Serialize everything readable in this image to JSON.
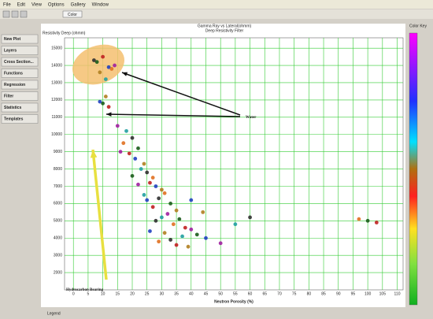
{
  "menu": [
    "File",
    "Edit",
    "View",
    "Options",
    "Gallery",
    "Window"
  ],
  "toolbar": [
    "Color"
  ],
  "side_buttons": [
    "New Plot",
    "Layers",
    "Cross Section...",
    "Functions",
    "Regression",
    "Filter",
    "Statistics",
    "Templates"
  ],
  "chart_data": {
    "type": "scatter",
    "title": "Gamma Ray vs Lateral(ohmm)",
    "subtitle": "Deep Resistivity Filter",
    "x_label": "Neutron Porosity (%)",
    "y_label": "Resistivity Deep (ohmm)",
    "colorbar_title": "Color Key",
    "legend_title": "Legend",
    "annotations": [
      "Water",
      "Hydrocarbon Bearing"
    ],
    "x": [
      8,
      10,
      12,
      9,
      14,
      11,
      7,
      13,
      10,
      12,
      9,
      11,
      15,
      18,
      20,
      17,
      22,
      19,
      21,
      24,
      16,
      23,
      25,
      27,
      20,
      26,
      28,
      30,
      22,
      24,
      29,
      31,
      33,
      27,
      25,
      35,
      32,
      30,
      28,
      34,
      36,
      38,
      26,
      31,
      40,
      37,
      33,
      29,
      42,
      35,
      45,
      39,
      50,
      55,
      60,
      97,
      100,
      103,
      40,
      44
    ],
    "y": [
      14200,
      14500,
      13900,
      13600,
      14000,
      13200,
      14300,
      13800,
      11800,
      11600,
      11900,
      12200,
      10500,
      10200,
      9800,
      9500,
      9200,
      8900,
      8600,
      8300,
      9000,
      8000,
      7800,
      7500,
      7600,
      7200,
      7000,
      6800,
      7100,
      6500,
      6300,
      6600,
      6000,
      5800,
      6200,
      5600,
      5400,
      5200,
      5000,
      4800,
      5100,
      4600,
      4400,
      4300,
      4500,
      4100,
      3900,
      3800,
      4200,
      3600,
      4000,
      3500,
      3700,
      4800,
      5200,
      5100,
      5000,
      4900,
      6200,
      5500
    ],
    "palette": [
      "#1a5c1a",
      "#c02020",
      "#2040c0",
      "#b08020",
      "#a020a0",
      "#20a0a0",
      "#303030",
      "#e07020"
    ],
    "xlim": [
      -3,
      112
    ],
    "xticks": [
      0,
      5,
      10,
      15,
      20,
      25,
      30,
      35,
      40,
      45,
      50,
      55,
      60,
      65,
      70,
      75,
      80,
      85,
      90,
      95,
      100,
      105,
      110
    ],
    "ylim": [
      1000,
      15600
    ],
    "yticks": [
      2000,
      3000,
      4000,
      5000,
      6000,
      7000,
      8000,
      9000,
      10000,
      11000,
      12000,
      13000,
      14000,
      15000
    ],
    "grid": true,
    "grid_color": "#33cc33"
  }
}
